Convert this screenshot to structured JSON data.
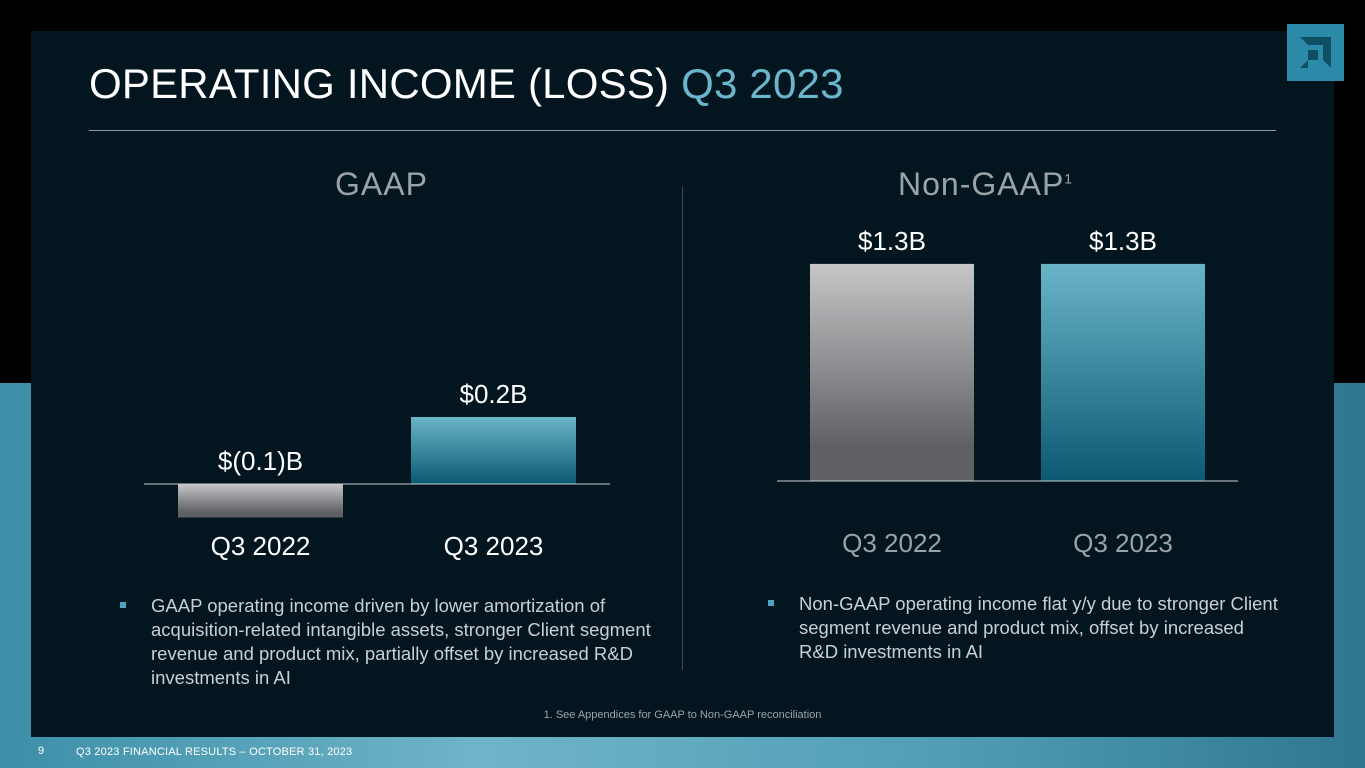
{
  "slide": {
    "title_main": "OPERATING INCOME (LOSS)",
    "title_accent": "Q3 2023",
    "footnote": "1. See Appendices for GAAP to Non-GAAP reconciliation",
    "page_number": "9",
    "footer": "Q3 2023 FINANCIAL RESULTS – OCTOBER 31, 2023"
  },
  "logo": {
    "icon": "amd-arrow-logo-icon"
  },
  "gaap": {
    "heading": "GAAP",
    "bullet": "GAAP operating income driven by lower amortization of acquisition-related intangible assets, stronger Client segment revenue and product mix, partially offset by increased R&D investments in AI"
  },
  "nongaap": {
    "heading": "Non-GAAP",
    "heading_sup": "1",
    "bullet": "Non-GAAP operating income flat y/y due to stronger Client segment revenue and product mix, offset by increased R&D investments in AI"
  },
  "colors": {
    "accent": "#6bb6cd",
    "panel": "#03161f",
    "grey_bar_top": "#c6c6c8",
    "grey_bar_bottom": "#5e6063",
    "teal_bar_top": "#6ab4c8",
    "teal_bar_bottom": "#0b5a72"
  },
  "chart_data": [
    {
      "type": "bar",
      "title": "GAAP",
      "categories": [
        "Q3 2022",
        "Q3 2023"
      ],
      "values": [
        -0.1,
        0.2
      ],
      "labels": [
        "$(0.1)B",
        "$0.2B"
      ],
      "unit": "$B",
      "ylim": [
        -0.1,
        0.2
      ]
    },
    {
      "type": "bar",
      "title": "Non-GAAP",
      "categories": [
        "Q3 2022",
        "Q3 2023"
      ],
      "values": [
        1.3,
        1.3
      ],
      "labels": [
        "$1.3B",
        "$1.3B"
      ],
      "unit": "$B",
      "ylim": [
        0,
        1.3
      ]
    }
  ]
}
